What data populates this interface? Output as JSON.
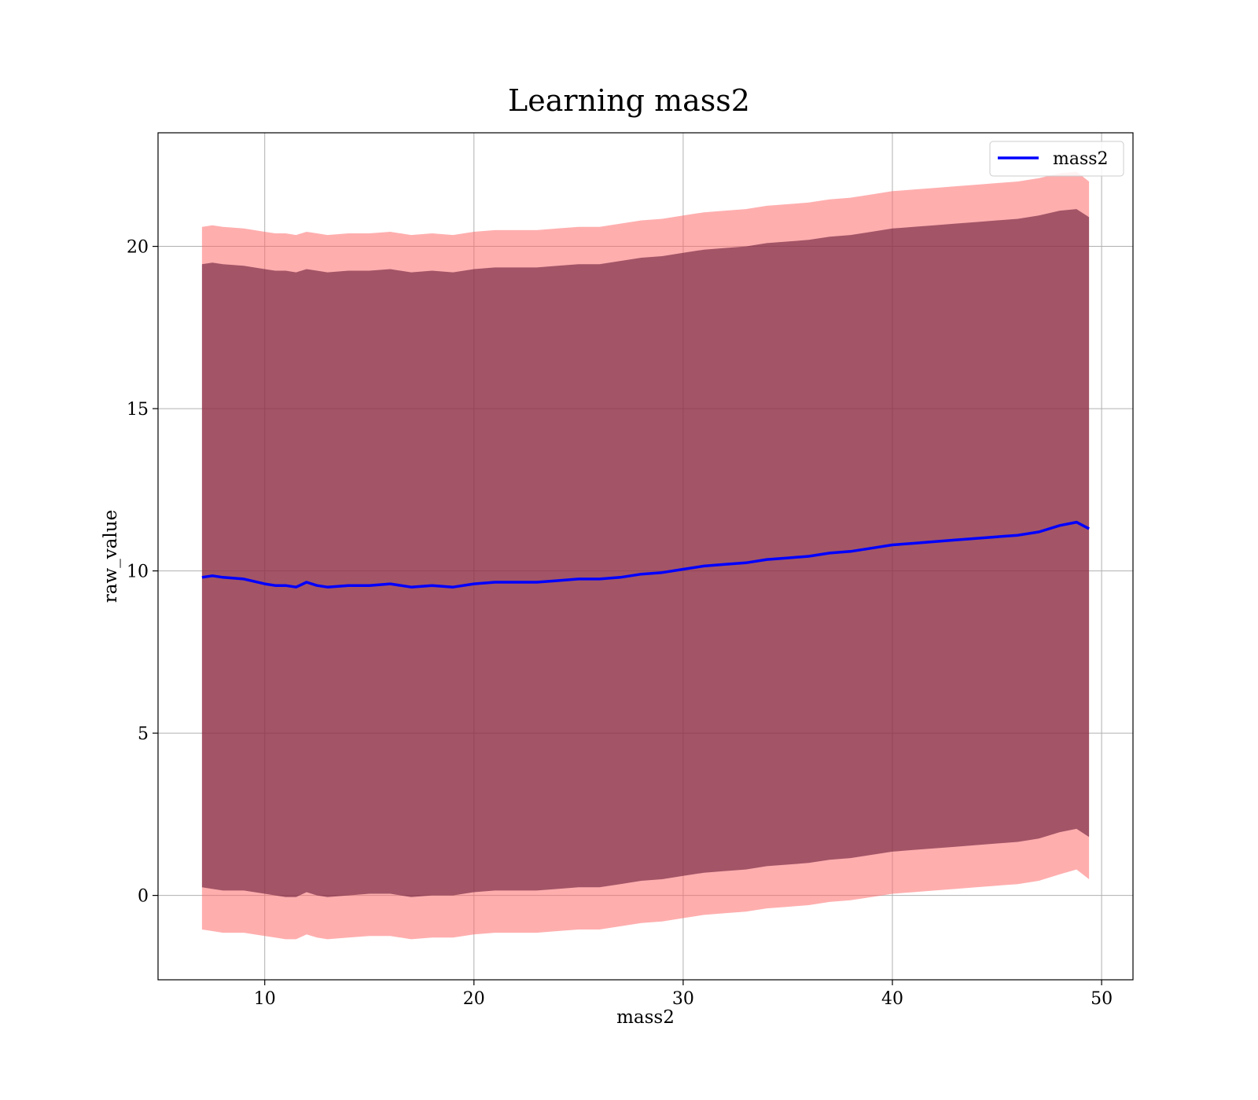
{
  "chart_data": {
    "type": "line",
    "title": "Learning mass2",
    "xlabel": "mass2",
    "ylabel": "raw_value",
    "xlim": [
      4.9,
      51.5
    ],
    "ylim": [
      -2.6,
      23.5
    ],
    "xticks": [
      10,
      20,
      30,
      40,
      50
    ],
    "yticks": [
      0,
      5,
      10,
      15,
      20
    ],
    "grid": true,
    "legend_position": "top-right",
    "x": [
      7.0,
      7.5,
      8.0,
      9.0,
      10.0,
      10.5,
      11.0,
      11.5,
      12.0,
      12.5,
      13.0,
      14.0,
      15.0,
      16.0,
      17.0,
      18.0,
      19.0,
      20.0,
      21.0,
      22.0,
      23.0,
      24.0,
      25.0,
      26.0,
      27.0,
      28.0,
      29.0,
      30.0,
      31.0,
      32.0,
      33.0,
      34.0,
      35.0,
      36.0,
      37.0,
      38.0,
      39.0,
      40.0,
      41.0,
      42.0,
      43.0,
      44.0,
      45.0,
      46.0,
      47.0,
      48.0,
      48.8,
      49.4
    ],
    "series": [
      {
        "name": "mass2",
        "color": "#0000ff",
        "values": [
          9.8,
          9.85,
          9.8,
          9.75,
          9.6,
          9.55,
          9.55,
          9.5,
          9.65,
          9.55,
          9.5,
          9.55,
          9.55,
          9.6,
          9.5,
          9.55,
          9.5,
          9.6,
          9.65,
          9.65,
          9.65,
          9.7,
          9.75,
          9.75,
          9.8,
          9.9,
          9.95,
          10.05,
          10.15,
          10.2,
          10.25,
          10.35,
          10.4,
          10.45,
          10.55,
          10.6,
          10.7,
          10.8,
          10.85,
          10.9,
          10.95,
          11.0,
          11.05,
          11.1,
          11.2,
          11.4,
          11.5,
          11.3
        ]
      }
    ],
    "bands": [
      {
        "color": "#ff6666",
        "opacity": 0.53,
        "lower": [
          -1.05,
          -1.1,
          -1.15,
          -1.15,
          -1.25,
          -1.3,
          -1.35,
          -1.35,
          -1.2,
          -1.3,
          -1.35,
          -1.3,
          -1.25,
          -1.25,
          -1.35,
          -1.3,
          -1.3,
          -1.2,
          -1.15,
          -1.15,
          -1.15,
          -1.1,
          -1.05,
          -1.05,
          -0.95,
          -0.85,
          -0.8,
          -0.7,
          -0.6,
          -0.55,
          -0.5,
          -0.4,
          -0.35,
          -0.3,
          -0.2,
          -0.15,
          -0.05,
          0.05,
          0.1,
          0.15,
          0.2,
          0.25,
          0.3,
          0.35,
          0.45,
          0.65,
          0.8,
          0.5
        ],
        "upper": [
          20.6,
          20.65,
          20.6,
          20.55,
          20.45,
          20.4,
          20.4,
          20.35,
          20.45,
          20.4,
          20.35,
          20.4,
          20.4,
          20.45,
          20.35,
          20.4,
          20.35,
          20.45,
          20.5,
          20.5,
          20.5,
          20.55,
          20.6,
          20.6,
          20.7,
          20.8,
          20.85,
          20.95,
          21.05,
          21.1,
          21.15,
          21.25,
          21.3,
          21.35,
          21.45,
          21.5,
          21.6,
          21.7,
          21.75,
          21.8,
          21.85,
          21.9,
          21.95,
          22.0,
          22.1,
          22.25,
          22.3,
          22.0
        ]
      },
      {
        "color": "#6a1e3c",
        "opacity": 0.62,
        "lower": [
          0.25,
          0.2,
          0.15,
          0.15,
          0.05,
          0.0,
          -0.05,
          -0.05,
          0.1,
          0.0,
          -0.05,
          0.0,
          0.05,
          0.05,
          -0.05,
          0.0,
          0.0,
          0.1,
          0.15,
          0.15,
          0.15,
          0.2,
          0.25,
          0.25,
          0.35,
          0.45,
          0.5,
          0.6,
          0.7,
          0.75,
          0.8,
          0.9,
          0.95,
          1.0,
          1.1,
          1.15,
          1.25,
          1.35,
          1.4,
          1.45,
          1.5,
          1.55,
          1.6,
          1.65,
          1.75,
          1.95,
          2.05,
          1.8
        ],
        "upper": [
          19.45,
          19.5,
          19.45,
          19.4,
          19.3,
          19.25,
          19.25,
          19.2,
          19.3,
          19.25,
          19.2,
          19.25,
          19.25,
          19.3,
          19.2,
          19.25,
          19.2,
          19.3,
          19.35,
          19.35,
          19.35,
          19.4,
          19.45,
          19.45,
          19.55,
          19.65,
          19.7,
          19.8,
          19.9,
          19.95,
          20.0,
          20.1,
          20.15,
          20.2,
          20.3,
          20.35,
          20.45,
          20.55,
          20.6,
          20.65,
          20.7,
          20.75,
          20.8,
          20.85,
          20.95,
          21.1,
          21.15,
          20.9
        ]
      }
    ]
  }
}
